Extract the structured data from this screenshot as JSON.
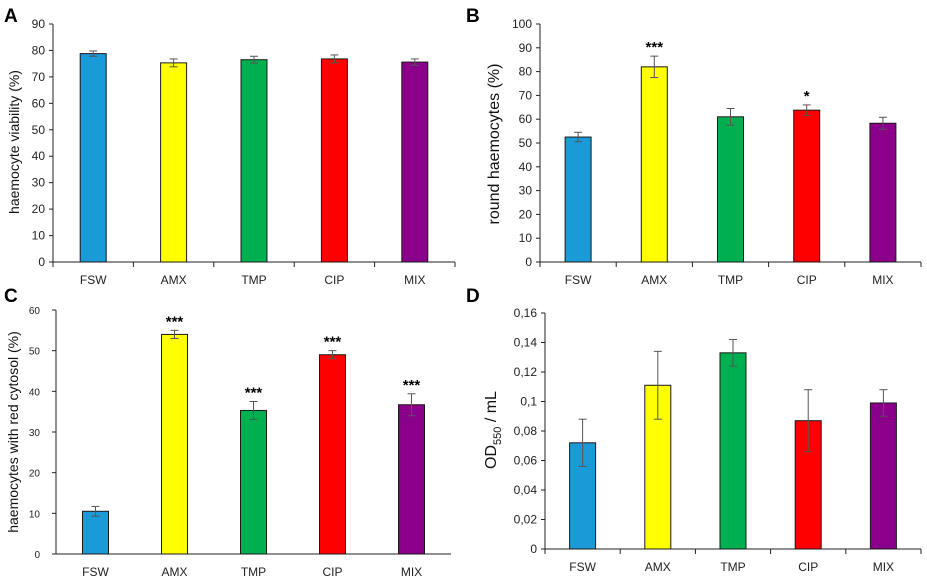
{
  "colors": {
    "FSW": "#1a9ad6",
    "AMX": "#ffff00",
    "TMP": "#00b050",
    "CIP": "#ff0000",
    "MIX": "#8b008b",
    "axis": "#222222",
    "error_bar": "#555555"
  },
  "chart_data": [
    {
      "panel": "A",
      "type": "bar",
      "categories": [
        "FSW",
        "AMX",
        "TMP",
        "CIP",
        "MIX"
      ],
      "values": [
        78.8,
        75.3,
        76.5,
        76.8,
        75.6
      ],
      "errors": [
        1.0,
        1.5,
        1.3,
        1.5,
        1.2
      ],
      "significance": [
        "",
        "",
        "",
        "",
        ""
      ],
      "ylabel": "haemocyte viability (%)",
      "ylim": [
        0,
        90
      ],
      "yticks": [
        0,
        10,
        20,
        30,
        40,
        50,
        60,
        70,
        80,
        90
      ],
      "ytick_labels": [
        "0",
        "10",
        "20",
        "30",
        "40",
        "50",
        "60",
        "70",
        "80",
        "90"
      ]
    },
    {
      "panel": "B",
      "type": "bar",
      "categories": [
        "FSW",
        "AMX",
        "TMP",
        "CIP",
        "MIX"
      ],
      "values": [
        52.5,
        82.0,
        61.0,
        63.8,
        58.3
      ],
      "errors": [
        2.0,
        4.5,
        3.5,
        2.2,
        2.5
      ],
      "significance": [
        "",
        "***",
        "",
        "*",
        ""
      ],
      "ylabel": "round haemocytes (%)",
      "ylim": [
        0,
        100
      ],
      "yticks": [
        0,
        10,
        20,
        30,
        40,
        50,
        60,
        70,
        80,
        90,
        100
      ],
      "ytick_labels": [
        "0",
        "10",
        "20",
        "30",
        "40",
        "50",
        "60",
        "70",
        "80",
        "90",
        "100"
      ]
    },
    {
      "panel": "C",
      "type": "bar",
      "categories": [
        "FSW",
        "AMX",
        "TMP",
        "CIP",
        "MIX"
      ],
      "values": [
        10.5,
        54.0,
        35.3,
        49.0,
        36.7
      ],
      "errors": [
        1.2,
        1.0,
        2.2,
        1.0,
        2.7
      ],
      "significance": [
        "",
        "***",
        "***",
        "***",
        "***"
      ],
      "ylabel": "haemocytes with red cytosol (%)",
      "ylim": [
        0,
        60
      ],
      "yticks": [
        0,
        10,
        20,
        30,
        40,
        50,
        60
      ],
      "ytick_labels": [
        "0",
        "10",
        "20",
        "30",
        "40",
        "50",
        "60"
      ]
    },
    {
      "panel": "D",
      "type": "bar",
      "categories": [
        "FSW",
        "AMX",
        "TMP",
        "CIP",
        "MIX"
      ],
      "values": [
        0.072,
        0.111,
        0.133,
        0.087,
        0.099
      ],
      "errors": [
        0.016,
        0.023,
        0.009,
        0.021,
        0.009
      ],
      "significance": [
        "",
        "",
        "",
        "",
        ""
      ],
      "ylabel": "OD550 / mL",
      "ylabel_parts": [
        "OD",
        "550",
        " / mL"
      ],
      "ylim": [
        0,
        0.16
      ],
      "yticks": [
        0,
        0.02,
        0.04,
        0.06,
        0.08,
        0.1,
        0.12,
        0.14,
        0.16
      ],
      "ytick_labels": [
        "0",
        "0,02",
        "0,04",
        "0,06",
        "0,08",
        "0,1",
        "0,12",
        "0,14",
        "0,16"
      ]
    }
  ]
}
